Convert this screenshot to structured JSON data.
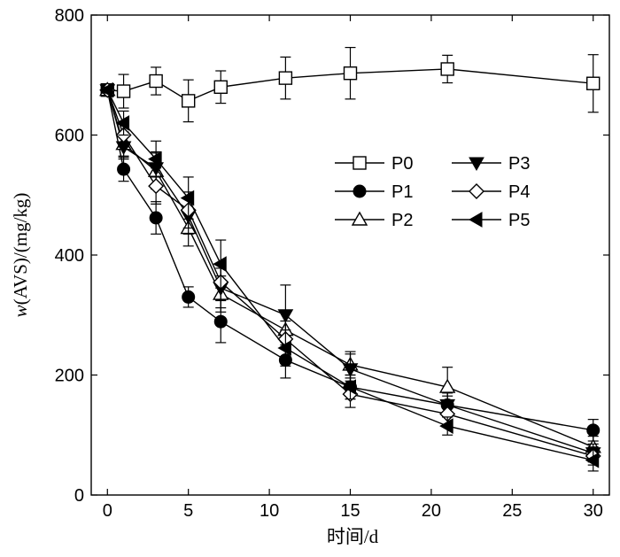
{
  "chart_data": {
    "type": "line",
    "xlabel": "时间/d",
    "ylabel_var": "w",
    "ylabel_rest": "(AVS)/(mg/kg)",
    "xlim": [
      -1,
      31
    ],
    "ylim": [
      0,
      800
    ],
    "x_ticks": [
      0,
      5,
      10,
      15,
      20,
      25,
      30
    ],
    "y_ticks": [
      0,
      200,
      400,
      600,
      800
    ],
    "grid": false,
    "legend_position": "upper-right",
    "x": [
      0,
      1,
      3,
      5,
      7,
      11,
      15,
      21,
      30
    ],
    "series": [
      {
        "name": "P0",
        "marker": "square-open",
        "values": [
          675,
          673,
          690,
          657,
          680,
          695,
          703,
          710,
          686
        ],
        "errors": [
          5,
          28,
          23,
          35,
          27,
          35,
          43,
          23,
          48
        ]
      },
      {
        "name": "P1",
        "marker": "circle-filled",
        "values": [
          675,
          543,
          462,
          330,
          289,
          225,
          180,
          150,
          108
        ],
        "errors": [
          5,
          20,
          27,
          17,
          35,
          30,
          20,
          15,
          18
        ]
      },
      {
        "name": "P2",
        "marker": "triangle-up-open",
        "values": [
          675,
          585,
          540,
          445,
          335,
          275,
          217,
          180,
          80
        ],
        "errors": [
          5,
          20,
          30,
          30,
          30,
          30,
          22,
          33,
          18
        ]
      },
      {
        "name": "P3",
        "marker": "triangle-down-filled",
        "values": [
          675,
          580,
          545,
          465,
          345,
          300,
          210,
          150,
          70
        ],
        "errors": [
          5,
          20,
          27,
          30,
          33,
          50,
          25,
          20,
          15
        ]
      },
      {
        "name": "P4",
        "marker": "diamond-open",
        "values": [
          675,
          600,
          515,
          475,
          355,
          260,
          168,
          135,
          65
        ],
        "errors": [
          5,
          20,
          30,
          30,
          30,
          30,
          22,
          18,
          15
        ]
      },
      {
        "name": "P5",
        "marker": "triangle-left-filled",
        "values": [
          675,
          620,
          560,
          495,
          385,
          245,
          180,
          115,
          58
        ],
        "errors": [
          5,
          20,
          30,
          35,
          40,
          30,
          20,
          15,
          18
        ]
      }
    ]
  }
}
